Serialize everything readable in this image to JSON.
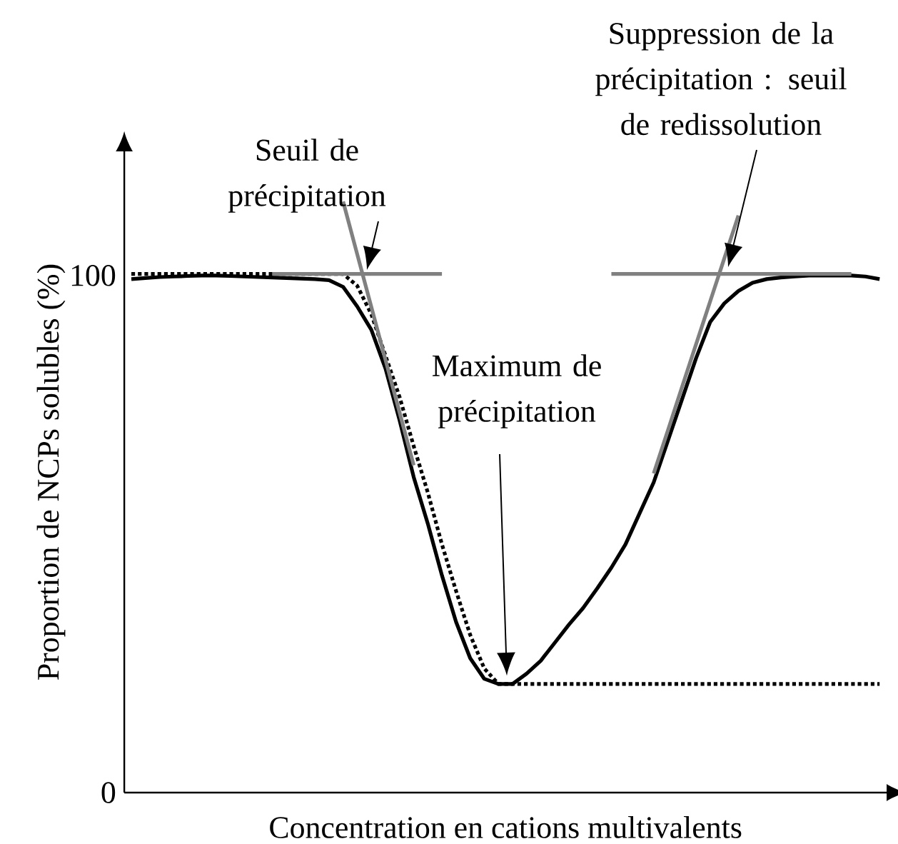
{
  "chart_data": {
    "type": "line",
    "xlabel": "Concentration en cations multivalents",
    "ylabel": "Proportion de NCPs solubles (%)",
    "categories": [
      null,
      null,
      null,
      null,
      null,
      null,
      null,
      null,
      null,
      null,
      null,
      null,
      null,
      null,
      null,
      null,
      null,
      null,
      null,
      null,
      null,
      null,
      null,
      null,
      null,
      null,
      null,
      null,
      null,
      null,
      null,
      null,
      null,
      null,
      null,
      null,
      null,
      null,
      null,
      null,
      null,
      null,
      null,
      null,
      null,
      null,
      null,
      null,
      null,
      null,
      null,
      null,
      null,
      null
    ],
    "ylim": [
      0,
      124
    ],
    "yticks": [
      0,
      100
    ],
    "tick_labels": "y",
    "series": [
      {
        "color": "#000000",
        "line_style": "solid",
        "values": [
          99.3,
          99.5,
          99.7,
          99.8,
          99.9,
          100,
          100,
          99.9,
          99.8,
          99.7,
          99.6,
          99.5,
          99.4,
          99.3,
          99.1,
          97.8,
          94,
          89.5,
          82,
          72,
          61,
          52,
          42,
          33,
          26,
          22,
          21,
          21,
          23,
          25.5,
          29,
          32.5,
          35.7,
          39.5,
          43.5,
          48,
          54,
          60,
          68,
          76,
          84,
          91,
          94.6,
          97,
          98.6,
          99.3,
          99.6,
          99.8,
          100,
          100,
          100,
          100,
          99.8,
          99.3
        ]
      },
      {
        "color": "#000000",
        "line_style": "dotted",
        "values": [
          100.3,
          100.3,
          100.3,
          100.3,
          100.3,
          100.3,
          100.3,
          100.3,
          100.3,
          100.3,
          100.3,
          100.3,
          100.3,
          100.3,
          100.3,
          100.3,
          98,
          92.5,
          84.5,
          76.5,
          67,
          58,
          48,
          39,
          30.5,
          24,
          21,
          21,
          21,
          21,
          21,
          21,
          21,
          21,
          21,
          21,
          21,
          21,
          21,
          21,
          21,
          21,
          21,
          21,
          21,
          21,
          21,
          21,
          21,
          21,
          21,
          21,
          21,
          21
        ]
      },
      {
        "color": "#808080",
        "line_style": "solid",
        "values": [
          null,
          null,
          null,
          null,
          null,
          null,
          null,
          null,
          null,
          null,
          100.3,
          100.3,
          100.3,
          100.3,
          100.3,
          100.3,
          100.3,
          100.3,
          100.3,
          100.3,
          100.3,
          100.3,
          100.3,
          null,
          null,
          null,
          null,
          null,
          null,
          null,
          null,
          null,
          null,
          null,
          null,
          null,
          null,
          null,
          null,
          null,
          null,
          null,
          null,
          null,
          null,
          null,
          null,
          null,
          null,
          null,
          null,
          null,
          null,
          null
        ]
      },
      {
        "color": "#808080",
        "line_style": "solid",
        "values": [
          null,
          null,
          null,
          null,
          null,
          null,
          null,
          null,
          null,
          null,
          null,
          null,
          null,
          null,
          null,
          114.3,
          104.1,
          93.9,
          83.7,
          73.5,
          63.3,
          null,
          null,
          null,
          null,
          null,
          null,
          null,
          null,
          null,
          null,
          null,
          null,
          null,
          null,
          null,
          null,
          null,
          null,
          null,
          null,
          null,
          null,
          null,
          null,
          null,
          null,
          null,
          null,
          null,
          null,
          null,
          null,
          null
        ]
      },
      {
        "color": "#808080",
        "line_style": "solid",
        "values": [
          null,
          null,
          null,
          null,
          null,
          null,
          null,
          null,
          null,
          null,
          null,
          null,
          null,
          null,
          null,
          null,
          null,
          null,
          null,
          null,
          null,
          null,
          null,
          null,
          null,
          null,
          null,
          null,
          null,
          null,
          null,
          null,
          null,
          null,
          100.3,
          100.3,
          100.3,
          100.3,
          100.3,
          100.3,
          100.3,
          100.3,
          100.3,
          100.3,
          100.3,
          100.3,
          100.3,
          100.3,
          100.3,
          100.3,
          100.3,
          100.3,
          null,
          null
        ]
      },
      {
        "color": "#808080",
        "line_style": "solid",
        "values": [
          null,
          null,
          null,
          null,
          null,
          null,
          null,
          null,
          null,
          null,
          null,
          null,
          null,
          null,
          null,
          null,
          null,
          null,
          null,
          null,
          null,
          null,
          null,
          null,
          null,
          null,
          null,
          null,
          null,
          null,
          null,
          null,
          null,
          null,
          null,
          null,
          null,
          61.7,
          70.0,
          78.4,
          86.7,
          95.0,
          103.3,
          111.6,
          null,
          null,
          null,
          null,
          null,
          null,
          null,
          null,
          null,
          null
        ]
      }
    ],
    "annotations": [
      "Seuil de précipitation",
      "Maximum de précipitation",
      "Suppression de la précipitation : seuil de redissolution"
    ]
  }
}
